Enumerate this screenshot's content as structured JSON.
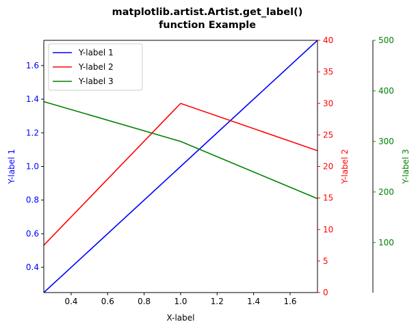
{
  "chart_data": {
    "type": "line",
    "title_line1": "matplotlib.artist.Artist.get_label()",
    "title_line2": "function Example",
    "xlabel": "X-label",
    "xlim": [
      0.25,
      1.75
    ],
    "xticks": [
      0.4,
      0.6,
      0.8,
      1.0,
      1.2,
      1.4,
      1.6
    ],
    "xtick_labels": [
      "0.4",
      "0.6",
      "0.8",
      "1.0",
      "1.2",
      "1.4",
      "1.6"
    ],
    "legend_position": "top-left",
    "axes": [
      {
        "id": "y1",
        "ylabel": "Y-label 1",
        "color": "#0000ff",
        "ylim": [
          0.25,
          1.75
        ],
        "ticks": [
          0.4,
          0.6,
          0.8,
          1.0,
          1.2,
          1.4,
          1.6
        ],
        "tick_labels": [
          "0.4",
          "0.6",
          "0.8",
          "1.0",
          "1.2",
          "1.4",
          "1.6"
        ]
      },
      {
        "id": "y2",
        "ylabel": "Y-label 2",
        "color": "#ff0000",
        "ylim": [
          0,
          40
        ],
        "ticks": [
          0,
          5,
          10,
          15,
          20,
          25,
          30,
          35,
          40
        ],
        "tick_labels": [
          "0",
          "5",
          "10",
          "15",
          "20",
          "25",
          "30",
          "35",
          "40"
        ]
      },
      {
        "id": "y3",
        "ylabel": "Y-label 3",
        "color": "#008000",
        "ylim": [
          1,
          500
        ],
        "ticks": [
          100,
          200,
          300,
          400,
          500
        ],
        "tick_labels": [
          "100",
          "200",
          "300",
          "400",
          "500"
        ]
      }
    ],
    "series": [
      {
        "name": "Y-label 1",
        "axis": "y1",
        "color": "#0000ff",
        "x": [
          0,
          1,
          2
        ],
        "y": [
          0,
          1,
          2
        ]
      },
      {
        "name": "Y-label 2",
        "axis": "y2",
        "color": "#ff0000",
        "x": [
          0,
          1,
          2
        ],
        "y": [
          0,
          30,
          20
        ]
      },
      {
        "name": "Y-label 3",
        "axis": "y3",
        "color": "#008000",
        "x": [
          0,
          1,
          2
        ],
        "y": [
          405,
          300,
          149
        ]
      }
    ]
  }
}
